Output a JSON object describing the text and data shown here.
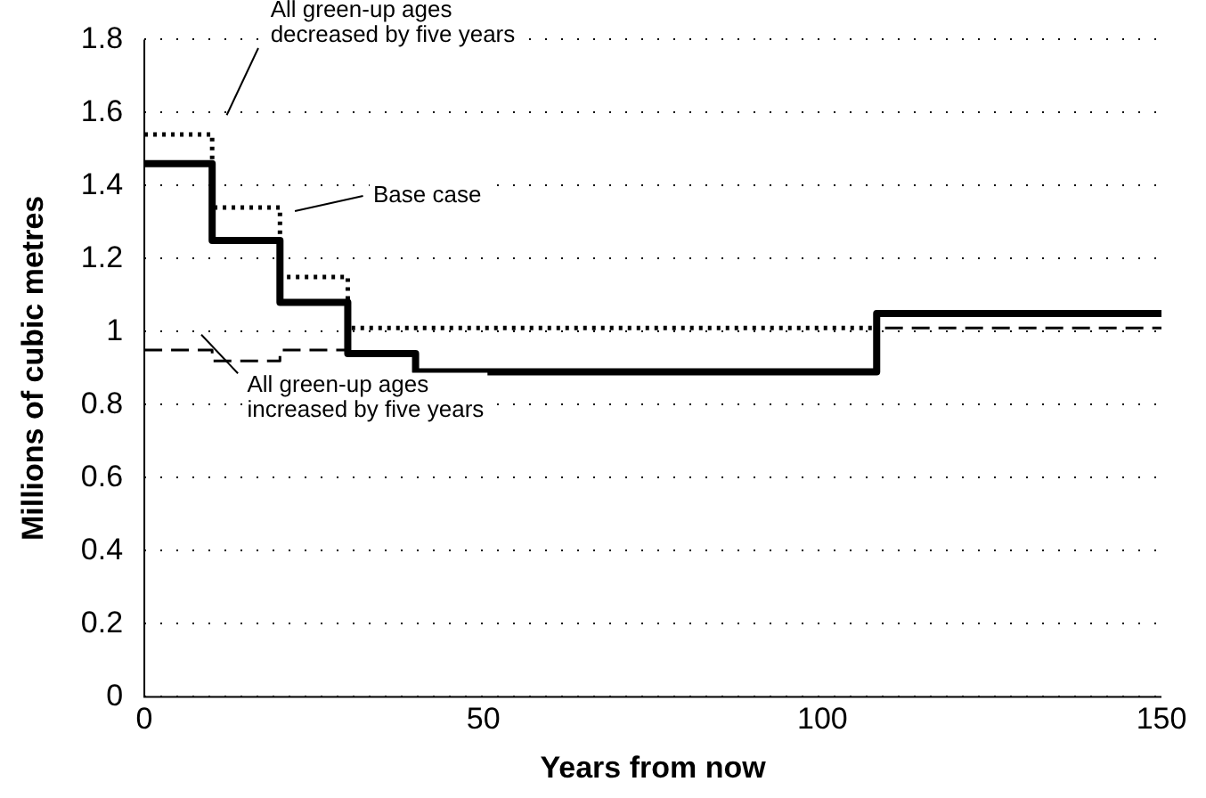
{
  "chart_data": {
    "type": "step",
    "xlabel": "Years from now",
    "ylabel": "Millions of cubic metres",
    "x": [
      0,
      10,
      20,
      30,
      40,
      108,
      150
    ],
    "series": [
      {
        "color": "#000000",
        "line_style": "dotted",
        "values": [
          1.54,
          1.34,
          1.15,
          1.01,
          1.01,
          1.05,
          1.05
        ]
      },
      {
        "color": "#000000",
        "line_style": "solid",
        "values": [
          1.46,
          1.25,
          1.08,
          0.94,
          0.89,
          1.05,
          1.05
        ]
      },
      {
        "color": "#000000",
        "line_style": "dashed",
        "values": [
          0.95,
          0.92,
          0.95,
          0.94,
          0.89,
          1.01,
          1.01
        ]
      }
    ],
    "xlim": [
      0,
      150
    ],
    "xticks": [
      0,
      50,
      100,
      150
    ],
    "ylim": [
      0,
      1.8
    ],
    "yticks": [
      0,
      0.2,
      0.4,
      0.6,
      0.8,
      1,
      1.2,
      1.4,
      1.6,
      1.8
    ],
    "grid": "y",
    "legend": false,
    "marker": "none",
    "annotations": [
      "All green-up ages\ndecreased by five years",
      "Base case",
      "All green-up ages\nincreased by five years"
    ]
  }
}
